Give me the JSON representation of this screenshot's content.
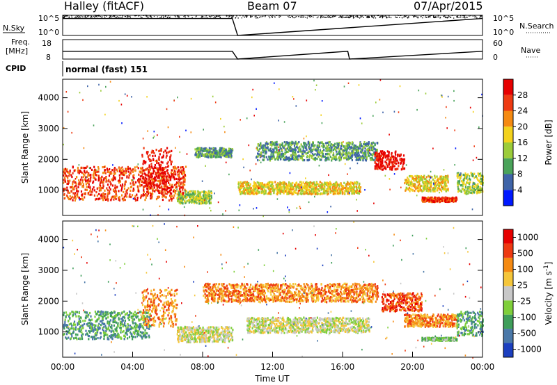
{
  "header": {
    "station": "Halley (fitACF)",
    "beam": "Beam 07",
    "date": "07/Apr/2015"
  },
  "chart_data": [
    {
      "type": "line",
      "panel": "noise",
      "left_label": "N.Sky",
      "left_ticks": [
        "10^5",
        "10^0"
      ],
      "right_label": "N.Search",
      "right_ticks": [
        "10^5",
        "10^0"
      ],
      "series": [
        {
          "name": "N.Sky",
          "style": "solid",
          "x": [
            0,
            9.7,
            10.0,
            24
          ],
          "y": [
            4.2,
            4.2,
            0,
            4.2
          ]
        },
        {
          "name": "N.Search",
          "style": "dotted",
          "x": [
            0,
            9.7,
            10.0,
            24
          ],
          "y": [
            4.6,
            4.6,
            0,
            4.8
          ]
        }
      ]
    },
    {
      "type": "line",
      "panel": "frequency",
      "left_label_1": "Freq.",
      "left_label_2": "[MHz]",
      "left_ticks": [
        "18",
        "8"
      ],
      "right_label": "Nave",
      "right_ticks": [
        "60",
        "0"
      ],
      "series": [
        {
          "name": "Freq.",
          "style": "solid",
          "x": [
            0,
            9.7,
            10.0,
            16.3,
            16.4,
            24
          ],
          "y": [
            12,
            12,
            8,
            12,
            8,
            12
          ]
        },
        {
          "name": "Nave",
          "style": "dotted",
          "x": [
            0,
            24
          ],
          "y": [
            30,
            30
          ]
        }
      ]
    },
    {
      "type": "text",
      "panel": "cpid",
      "label": "CPID",
      "value": "normal (fast) 151"
    },
    {
      "type": "heatmap",
      "panel": "power",
      "ylabel": "Slant Range [km]",
      "yticks": [
        "1000",
        "2000",
        "3000",
        "4000"
      ],
      "ylim": [
        180,
        4600
      ],
      "xlim": [
        0,
        24
      ],
      "colorbar_label": "Power [dB]",
      "colorbar_ticks": [
        "4",
        "8",
        "12",
        "16",
        "20",
        "24",
        "28"
      ],
      "colorbar_range": [
        0,
        32
      ],
      "colors": [
        "#0018ff",
        "#3f64a8",
        "#4aa35a",
        "#9ccc3a",
        "#f3d21d",
        "#f58a12",
        "#ee3a12",
        "#e60000"
      ],
      "regions": [
        {
          "t0": 0.0,
          "t1": 7.0,
          "r0": 700,
          "r1": 1800,
          "level": 6
        },
        {
          "t0": 4.5,
          "t1": 6.2,
          "r0": 1000,
          "r1": 2400,
          "level": 7
        },
        {
          "t0": 6.5,
          "t1": 8.5,
          "r0": 600,
          "r1": 1000,
          "level": 3
        },
        {
          "t0": 7.5,
          "t1": 9.7,
          "r0": 2100,
          "r1": 2400,
          "level": 2
        },
        {
          "t0": 10.0,
          "t1": 17.0,
          "r0": 900,
          "r1": 1300,
          "level": 4
        },
        {
          "t0": 11.0,
          "t1": 18.0,
          "r0": 2000,
          "r1": 2600,
          "level": 2
        },
        {
          "t0": 17.8,
          "t1": 19.5,
          "r0": 1700,
          "r1": 2300,
          "level": 7
        },
        {
          "t0": 19.5,
          "t1": 22.0,
          "r0": 1000,
          "r1": 1500,
          "level": 4
        },
        {
          "t0": 20.5,
          "t1": 22.5,
          "r0": 650,
          "r1": 800,
          "level": 6
        },
        {
          "t0": 22.5,
          "t1": 24.0,
          "r0": 900,
          "r1": 1600,
          "level": 3
        }
      ]
    },
    {
      "type": "heatmap",
      "panel": "velocity",
      "ylabel": "Slant Range [km]",
      "yticks": [
        "1000",
        "2000",
        "3000",
        "4000"
      ],
      "ylim": [
        180,
        4600
      ],
      "xlim": [
        0,
        24
      ],
      "xlabel": "Time UT",
      "xticks": [
        "00:00",
        "04:00",
        "08:00",
        "12:00",
        "16:00",
        "20:00",
        "00:00"
      ],
      "colorbar_label": "Velocity [m s",
      "colorbar_label_sup": "-1",
      "colorbar_label_end": "]",
      "colorbar_ticks": [
        "1000",
        "500",
        "100",
        "25",
        "-25",
        "-100",
        "-500",
        "-1000"
      ],
      "colors": [
        "#1c3fbf",
        "#4a78a8",
        "#3f9e5a",
        "#7fcf3a",
        "#c8c8c8",
        "#f5c63a",
        "#f58a12",
        "#ee3a12",
        "#e60000"
      ],
      "regions": [
        {
          "t0": 0.0,
          "t1": 5.0,
          "r0": 800,
          "r1": 1700,
          "level": 2
        },
        {
          "t0": 4.5,
          "t1": 6.5,
          "r0": 1200,
          "r1": 2400,
          "level": 6
        },
        {
          "t0": 6.5,
          "t1": 9.7,
          "r0": 700,
          "r1": 1200,
          "level": 4
        },
        {
          "t0": 8.0,
          "t1": 18.0,
          "r0": 2000,
          "r1": 2600,
          "level": 6
        },
        {
          "t0": 10.5,
          "t1": 17.5,
          "r0": 1000,
          "r1": 1500,
          "level": 4
        },
        {
          "t0": 18.2,
          "t1": 20.5,
          "r0": 1700,
          "r1": 2300,
          "level": 7
        },
        {
          "t0": 19.5,
          "t1": 22.5,
          "r0": 1200,
          "r1": 1600,
          "level": 6
        },
        {
          "t0": 20.5,
          "t1": 22.5,
          "r0": 750,
          "r1": 850,
          "level": 3
        },
        {
          "t0": 22.5,
          "t1": 24.0,
          "r0": 900,
          "r1": 1700,
          "level": 2
        }
      ]
    }
  ]
}
